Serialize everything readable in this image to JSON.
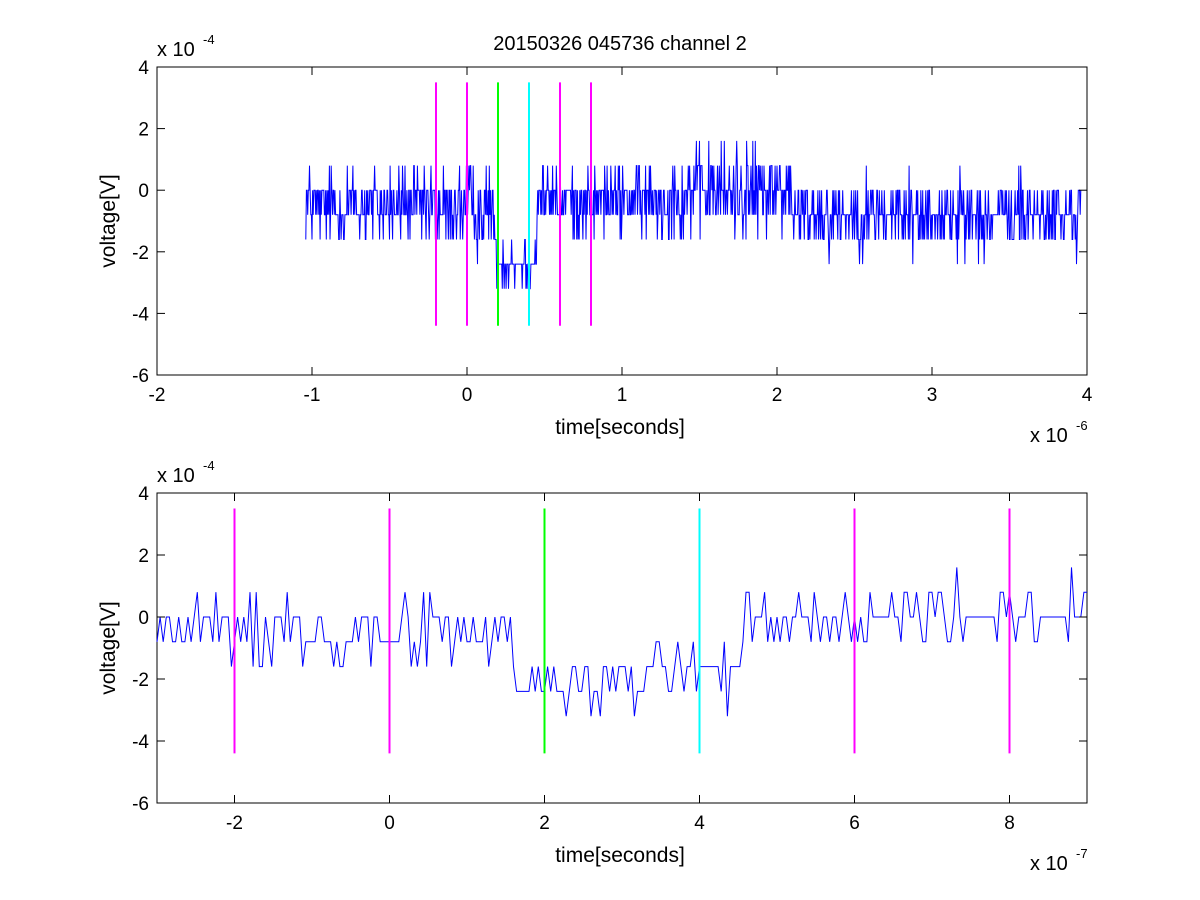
{
  "figure": {
    "title": "20150326 045736 channel 2"
  },
  "chart_data": [
    {
      "type": "line",
      "title": "20150326 045736 channel 2",
      "xlabel": "time[seconds]",
      "ylabel": "voltage[V]",
      "x_multiplier_label": "x 10",
      "x_multiplier_exponent": "-6",
      "y_multiplier_label": "x 10",
      "y_multiplier_exponent": "-4",
      "xlim": [
        -2,
        4
      ],
      "ylim": [
        -6,
        4
      ],
      "xticks": [
        -2,
        -1,
        0,
        1,
        2,
        3,
        4
      ],
      "yticks": [
        -6,
        -4,
        -2,
        0,
        2,
        4
      ],
      "grid": false,
      "signal": {
        "color": "#0000ff",
        "x_start": -1.04,
        "x_end": 3.96,
        "quantization_step": 0.8,
        "segments": [
          {
            "x0": -1.04,
            "x1": -0.25,
            "mean": -0.5,
            "spread": 1.2
          },
          {
            "x0": -0.25,
            "x1": 0.18,
            "mean": -0.6,
            "spread": 1.3
          },
          {
            "x0": 0.18,
            "x1": 0.45,
            "mean": -2.3,
            "spread": 0.8
          },
          {
            "x0": 0.45,
            "x1": 1.4,
            "mean": -0.3,
            "spread": 1.1
          },
          {
            "x0": 1.4,
            "x1": 2.1,
            "mean": 0.0,
            "spread": 1.3
          },
          {
            "x0": 2.1,
            "x1": 3.96,
            "mean": -0.8,
            "spread": 1.1
          }
        ]
      },
      "markers": [
        {
          "x": -0.2,
          "color": "#ff00ff"
        },
        {
          "x": 0.0,
          "color": "#ff00ff"
        },
        {
          "x": 0.2,
          "color": "#00ff00"
        },
        {
          "x": 0.4,
          "color": "#00ffff"
        },
        {
          "x": 0.6,
          "color": "#ff00ff"
        },
        {
          "x": 0.8,
          "color": "#ff00ff"
        }
      ],
      "marker_range": [
        -4.4,
        3.5
      ]
    },
    {
      "type": "line",
      "title": "",
      "xlabel": "time[seconds]",
      "ylabel": "voltage[V]",
      "x_multiplier_label": "x 10",
      "x_multiplier_exponent": "-7",
      "y_multiplier_label": "x 10",
      "y_multiplier_exponent": "-4",
      "xlim": [
        -3,
        9
      ],
      "ylim": [
        -6,
        4
      ],
      "xticks": [
        -2,
        0,
        2,
        4,
        6,
        8
      ],
      "yticks": [
        -6,
        -4,
        -2,
        0,
        2,
        4
      ],
      "grid": false,
      "signal": {
        "color": "#0000ff",
        "x_start": -3,
        "x_end": 9,
        "quantization_step": 0.8,
        "segments": [
          {
            "x0": -3,
            "x1": 1.6,
            "mean": -0.4,
            "spread": 1.0
          },
          {
            "x0": 1.6,
            "x1": 3.3,
            "mean": -2.2,
            "spread": 0.9
          },
          {
            "x0": 3.3,
            "x1": 4.6,
            "mean": -1.6,
            "spread": 1.2
          },
          {
            "x0": 4.6,
            "x1": 6.4,
            "mean": -0.2,
            "spread": 1.0
          },
          {
            "x0": 6.4,
            "x1": 9,
            "mean": 0.0,
            "spread": 1.0
          }
        ]
      },
      "markers": [
        {
          "x": -2,
          "color": "#ff00ff"
        },
        {
          "x": 0,
          "color": "#ff00ff"
        },
        {
          "x": 2,
          "color": "#00ff00"
        },
        {
          "x": 4,
          "color": "#00ffff"
        },
        {
          "x": 6,
          "color": "#ff00ff"
        },
        {
          "x": 8,
          "color": "#ff00ff"
        }
      ],
      "marker_range": [
        -4.4,
        3.5
      ]
    }
  ]
}
